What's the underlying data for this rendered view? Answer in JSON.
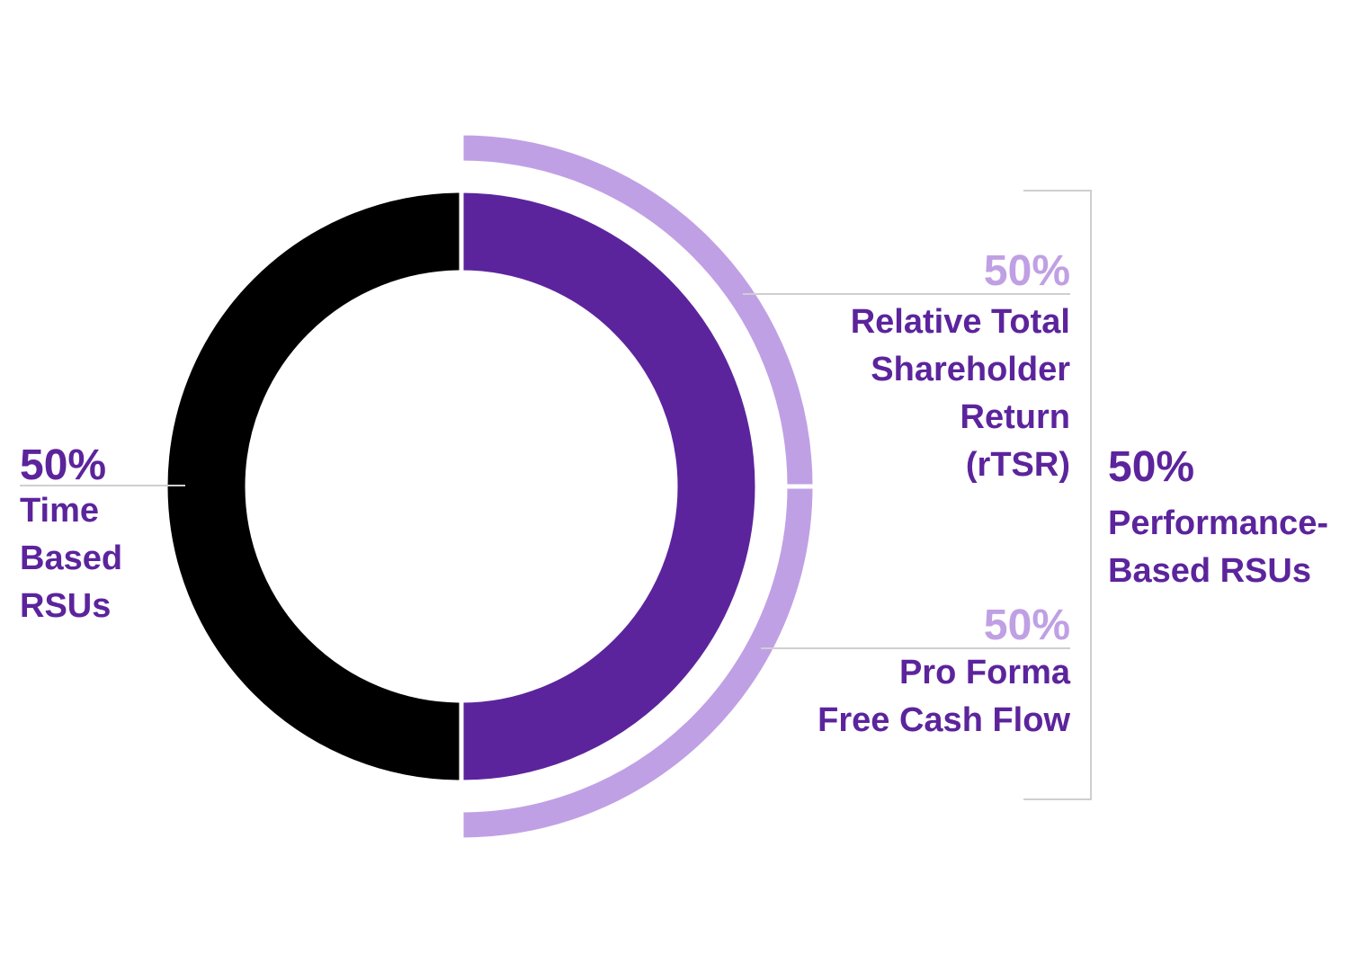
{
  "colors": {
    "time_based": "#000000",
    "performance_based": "#5c249c",
    "performance_split": "#c0a0e4",
    "leader": "#cfcfcf"
  },
  "chart_data": {
    "type": "pie",
    "title": "",
    "inner": {
      "series": [
        {
          "name": "Time Based RSUs",
          "value": 50,
          "percent_label": "50%",
          "color": "#000000"
        },
        {
          "name": "Performance-Based RSUs",
          "value": 50,
          "percent_label": "50%",
          "color": "#5c249c"
        }
      ]
    },
    "outer": {
      "parent": "Performance-Based RSUs",
      "series": [
        {
          "name": "Relative Total Shareholder Return (rTSR)",
          "value": 50,
          "percent_label": "50%",
          "color": "#c0a0e4"
        },
        {
          "name": "Pro Forma Free Cash Flow",
          "value": 50,
          "percent_label": "50%",
          "color": "#c0a0e4"
        }
      ]
    }
  },
  "labels": {
    "time": {
      "pct": "50%",
      "text": "Time\nBased\nRSUs"
    },
    "rtsr": {
      "pct": "50%",
      "text": "Relative Total\nShareholder\nReturn\n(rTSR)"
    },
    "fcf": {
      "pct": "50%",
      "text": "Pro Forma\nFree Cash Flow"
    },
    "perf": {
      "pct": "50%",
      "text": "Performance-\nBased RSUs"
    }
  }
}
